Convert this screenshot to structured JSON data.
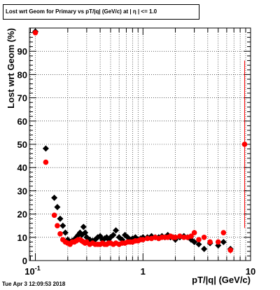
{
  "chart_data": {
    "type": "scatter",
    "title": "Lost wrt Geom for Primary vs pT/|q| (GeV/c) at |  η | <= 1.0",
    "xlabel": "pT/|q| (GeV/c)",
    "ylabel": "Lost wrt Geom (%)",
    "x_scale": "log",
    "xlim": [
      0.088,
      10
    ],
    "ylim": [
      0,
      100
    ],
    "grid": true,
    "x_tick_labels": [
      {
        "value": 0.1,
        "base": "10",
        "exp": "-1"
      },
      {
        "value": 1,
        "text": "1"
      },
      {
        "value": 10,
        "text": "10"
      }
    ],
    "y_ticks": [
      0,
      10,
      20,
      30,
      40,
      50,
      60,
      70,
      80,
      90
    ],
    "colors": {
      "series_1": "#000000",
      "series_2": "#ff0000"
    },
    "series": [
      {
        "color": "#000000",
        "marker": "diamond",
        "points": [
          {
            "x": 0.1,
            "y": 98.5
          },
          {
            "x": 0.125,
            "y": 48.2
          },
          {
            "x": 0.15,
            "y": 27
          },
          {
            "x": 0.16,
            "y": 23
          },
          {
            "x": 0.17,
            "y": 18
          },
          {
            "x": 0.18,
            "y": 15
          },
          {
            "x": 0.19,
            "y": 12
          },
          {
            "x": 0.2,
            "y": 9
          },
          {
            "x": 0.21,
            "y": 8
          },
          {
            "x": 0.22,
            "y": 8.5
          },
          {
            "x": 0.23,
            "y": 9
          },
          {
            "x": 0.24,
            "y": 10
          },
          {
            "x": 0.25,
            "y": 11
          },
          {
            "x": 0.26,
            "y": 12
          },
          {
            "x": 0.27,
            "y": 11
          },
          {
            "x": 0.28,
            "y": 14.5
          },
          {
            "x": 0.29,
            "y": 12
          },
          {
            "x": 0.3,
            "y": 10
          },
          {
            "x": 0.32,
            "y": 9
          },
          {
            "x": 0.34,
            "y": 8.5
          },
          {
            "x": 0.36,
            "y": 9
          },
          {
            "x": 0.38,
            "y": 10
          },
          {
            "x": 0.4,
            "y": 10.5
          },
          {
            "x": 0.42,
            "y": 9
          },
          {
            "x": 0.44,
            "y": 9.5
          },
          {
            "x": 0.46,
            "y": 10
          },
          {
            "x": 0.48,
            "y": 9
          },
          {
            "x": 0.5,
            "y": 10
          },
          {
            "x": 0.53,
            "y": 11
          },
          {
            "x": 0.56,
            "y": 13
          },
          {
            "x": 0.6,
            "y": 10
          },
          {
            "x": 0.64,
            "y": 9
          },
          {
            "x": 0.68,
            "y": 11
          },
          {
            "x": 0.72,
            "y": 10
          },
          {
            "x": 0.76,
            "y": 9
          },
          {
            "x": 0.8,
            "y": 9.5
          },
          {
            "x": 0.85,
            "y": 10
          },
          {
            "x": 0.9,
            "y": 9
          },
          {
            "x": 0.95,
            "y": 9.5
          },
          {
            "x": 1.0,
            "y": 10
          },
          {
            "x": 1.1,
            "y": 10
          },
          {
            "x": 1.2,
            "y": 10.5
          },
          {
            "x": 1.3,
            "y": 10
          },
          {
            "x": 1.4,
            "y": 10
          },
          {
            "x": 1.5,
            "y": 10.5
          },
          {
            "x": 1.6,
            "y": 10
          },
          {
            "x": 1.7,
            "y": 11
          },
          {
            "x": 1.8,
            "y": 10
          },
          {
            "x": 1.9,
            "y": 10
          },
          {
            "x": 2.0,
            "y": 9
          },
          {
            "x": 2.2,
            "y": 10
          },
          {
            "x": 2.4,
            "y": 10.5
          },
          {
            "x": 2.6,
            "y": 10
          },
          {
            "x": 2.8,
            "y": 9
          },
          {
            "x": 3.0,
            "y": 8
          },
          {
            "x": 3.3,
            "y": 7
          },
          {
            "x": 3.7,
            "y": 5
          },
          {
            "x": 4.2,
            "y": 7.5
          },
          {
            "x": 5.0,
            "y": 6.5
          },
          {
            "x": 5.6,
            "y": 8
          },
          {
            "x": 6.5,
            "y": 5
          }
        ]
      },
      {
        "color": "#ff0000",
        "marker": "circle",
        "points": [
          {
            "x": 0.1,
            "y": 98
          },
          {
            "x": 0.125,
            "y": 42.3
          },
          {
            "x": 0.15,
            "y": 19.5
          },
          {
            "x": 0.16,
            "y": 15
          },
          {
            "x": 0.17,
            "y": 11.5
          },
          {
            "x": 0.18,
            "y": 9
          },
          {
            "x": 0.19,
            "y": 8
          },
          {
            "x": 0.2,
            "y": 7.5
          },
          {
            "x": 0.21,
            "y": 7
          },
          {
            "x": 0.22,
            "y": 8
          },
          {
            "x": 0.23,
            "y": 8
          },
          {
            "x": 0.24,
            "y": 8.5
          },
          {
            "x": 0.25,
            "y": 9
          },
          {
            "x": 0.26,
            "y": 9
          },
          {
            "x": 0.27,
            "y": 8.5
          },
          {
            "x": 0.28,
            "y": 8
          },
          {
            "x": 0.29,
            "y": 7.5
          },
          {
            "x": 0.3,
            "y": 8
          },
          {
            "x": 0.32,
            "y": 7
          },
          {
            "x": 0.34,
            "y": 7.5
          },
          {
            "x": 0.36,
            "y": 7
          },
          {
            "x": 0.38,
            "y": 7
          },
          {
            "x": 0.4,
            "y": 7
          },
          {
            "x": 0.42,
            "y": 7.5
          },
          {
            "x": 0.44,
            "y": 7
          },
          {
            "x": 0.46,
            "y": 7
          },
          {
            "x": 0.48,
            "y": 7.5
          },
          {
            "x": 0.5,
            "y": 7.5
          },
          {
            "x": 0.53,
            "y": 7
          },
          {
            "x": 0.56,
            "y": 7.5
          },
          {
            "x": 0.6,
            "y": 7
          },
          {
            "x": 0.64,
            "y": 7.5
          },
          {
            "x": 0.68,
            "y": 7.5
          },
          {
            "x": 0.72,
            "y": 8
          },
          {
            "x": 0.76,
            "y": 8
          },
          {
            "x": 0.8,
            "y": 8
          },
          {
            "x": 0.85,
            "y": 8.5
          },
          {
            "x": 0.9,
            "y": 8.5
          },
          {
            "x": 0.95,
            "y": 9
          },
          {
            "x": 1.0,
            "y": 9
          },
          {
            "x": 1.1,
            "y": 9.5
          },
          {
            "x": 1.2,
            "y": 9.5
          },
          {
            "x": 1.3,
            "y": 10
          },
          {
            "x": 1.4,
            "y": 9.5
          },
          {
            "x": 1.5,
            "y": 10
          },
          {
            "x": 1.6,
            "y": 10
          },
          {
            "x": 1.7,
            "y": 10
          },
          {
            "x": 1.8,
            "y": 10.5
          },
          {
            "x": 1.9,
            "y": 10
          },
          {
            "x": 2.0,
            "y": 10
          },
          {
            "x": 2.2,
            "y": 10.5
          },
          {
            "x": 2.4,
            "y": 10
          },
          {
            "x": 2.6,
            "y": 10
          },
          {
            "x": 2.8,
            "y": 10.5
          },
          {
            "x": 3.0,
            "y": 12
          },
          {
            "x": 3.3,
            "y": 9
          },
          {
            "x": 3.7,
            "y": 10
          },
          {
            "x": 4.2,
            "y": 8
          },
          {
            "x": 5.0,
            "y": 8
          },
          {
            "x": 5.6,
            "y": 12
          },
          {
            "x": 6.5,
            "y": 4.5,
            "err": 1.5
          },
          {
            "x": 8.8,
            "y": 50,
            "err": 36
          }
        ]
      }
    ]
  },
  "footer": {
    "timestamp": "Tue Apr  3 12:09:53 2018"
  }
}
